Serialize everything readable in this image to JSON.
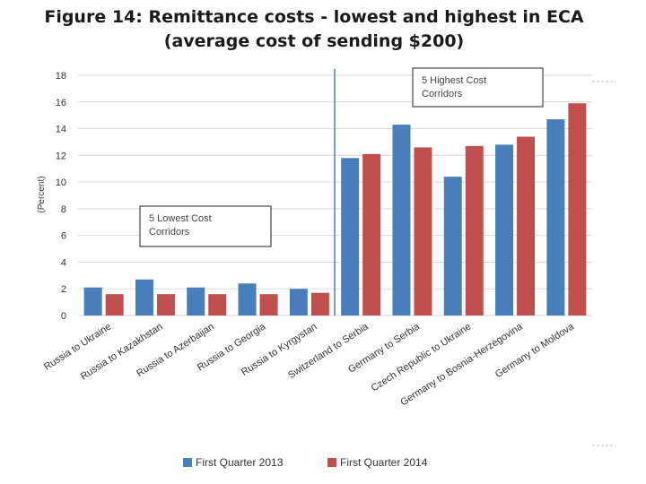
{
  "chart_data": {
    "type": "bar",
    "title": "Figure 14: Remittance costs - lowest and highest in ECA",
    "subtitle": "(average cost of sending $200)",
    "xlabel": "",
    "ylabel": "(Percent)",
    "ylim": [
      0,
      18
    ],
    "yticks": [
      0,
      2,
      4,
      6,
      8,
      10,
      12,
      14,
      16,
      18
    ],
    "grid": true,
    "legend_position": "bottom",
    "categories": [
      "Russia to Ukraine",
      "Russia to Kazakhstan",
      "Russia to Azerbaijan",
      "Russia to Georgia",
      "Russia to Kyrgystan",
      "Switzerland to Serbia",
      "Germany to Serbia",
      "Czech Republic to Ukraine",
      "Germany to Bosnia-Herzegovina",
      "Germany to Moldova"
    ],
    "series": [
      {
        "name": "First Quarter 2013",
        "color": "#4a7ebb",
        "values": [
          2.1,
          2.7,
          2.1,
          2.4,
          2.0,
          11.8,
          14.3,
          10.4,
          12.8,
          14.7
        ]
      },
      {
        "name": "First Quarter 2014",
        "color": "#c0504d",
        "values": [
          1.6,
          1.6,
          1.6,
          1.6,
          1.7,
          12.1,
          12.6,
          12.7,
          13.4,
          15.9
        ]
      }
    ],
    "annotations": {
      "lowest_box": [
        "5 Lowest Cost",
        "Corridors"
      ],
      "highest_box": [
        "5 Highest  Cost",
        "Corridors"
      ]
    }
  }
}
